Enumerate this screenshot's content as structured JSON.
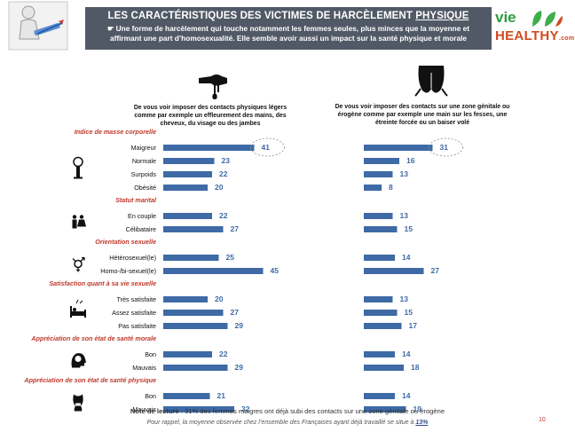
{
  "header": {
    "title_prefix": "LES CARACTÉRISTIQUES DES VICTIMES DE HARCÈLEMENT ",
    "title_emph": "PHYSIQUE",
    "subtitle_line1": "☛ Une forme de harcèlement qui touche notamment les femmes seules, plus minces que la moyenne et",
    "subtitle_line2": "affirmant une part d’homosexualité. Elle semble avoir aussi un impact sur la santé physique et morale",
    "logo_top": "vie",
    "logo_bottom": "HEALTHY",
    "logo_suffix": ".com"
  },
  "columns": {
    "left_heading": "De vous voir imposer des contacts physiques légers comme par exemple un effleurement des mains, des cheveux, du visage ou des jambes",
    "right_heading": "De vous voir imposer des contacts sur une zone génitale ou érogène comme par exemple une main sur les fesses, une étreinte forcée ou un baiser volé"
  },
  "chart_data": {
    "type": "bar",
    "orientation": "horizontal",
    "bar_color": "#3e6aa5",
    "section_color": "#c0392b",
    "highlight": {
      "group": "Indice de masse corporelle",
      "category": "Maigreur"
    },
    "groups": [
      {
        "name": "Indice de masse corporelle",
        "icon": "scale-icon",
        "categories": [
          "Maigreur",
          "Normale",
          "Surpoids",
          "Obésité"
        ],
        "left": [
          41,
          23,
          22,
          20
        ],
        "right": [
          31,
          16,
          13,
          8
        ]
      },
      {
        "name": "Statut marital",
        "icon": "couple-icon",
        "categories": [
          "En couple",
          "Célibataire"
        ],
        "left": [
          22,
          27
        ],
        "right": [
          13,
          15
        ]
      },
      {
        "name": "Orientation sexuelle",
        "icon": "gender-icon",
        "categories": [
          "Hétérosexuel(le)",
          "Homo-/bi-sexuel(le)"
        ],
        "left": [
          25,
          45
        ],
        "right": [
          14,
          27
        ]
      },
      {
        "name": "Satisfaction quant à sa vie sexuelle",
        "icon": "bed-icon",
        "categories": [
          "Très satisfaite",
          "Assez satisfaite",
          "Pas satisfaite"
        ],
        "left": [
          20,
          27,
          29
        ],
        "right": [
          13,
          15,
          17
        ]
      },
      {
        "name": "Appréciation de son état de santé morale",
        "icon": "head-icon",
        "categories": [
          "Bon",
          "Mauvais"
        ],
        "left": [
          22,
          29
        ],
        "right": [
          14,
          18
        ]
      },
      {
        "name": "Appréciation de son état de santé physique",
        "icon": "body-icon",
        "categories": [
          "Bon",
          "Mauvais"
        ],
        "left": [
          21,
          32
        ],
        "right": [
          14,
          19
        ]
      }
    ]
  },
  "footer": {
    "note_label": "Note de lecture",
    "note_text": " : 31% des femmes maigres ont déjà subi des contacts sur une zone génitale ou érogène",
    "rappel_text": "Pour rappel, la moyenne observée chez l’ensemble des Françaises ayant déjà travaillé se situe à ",
    "rappel_value": "13%",
    "page_number": "10"
  }
}
